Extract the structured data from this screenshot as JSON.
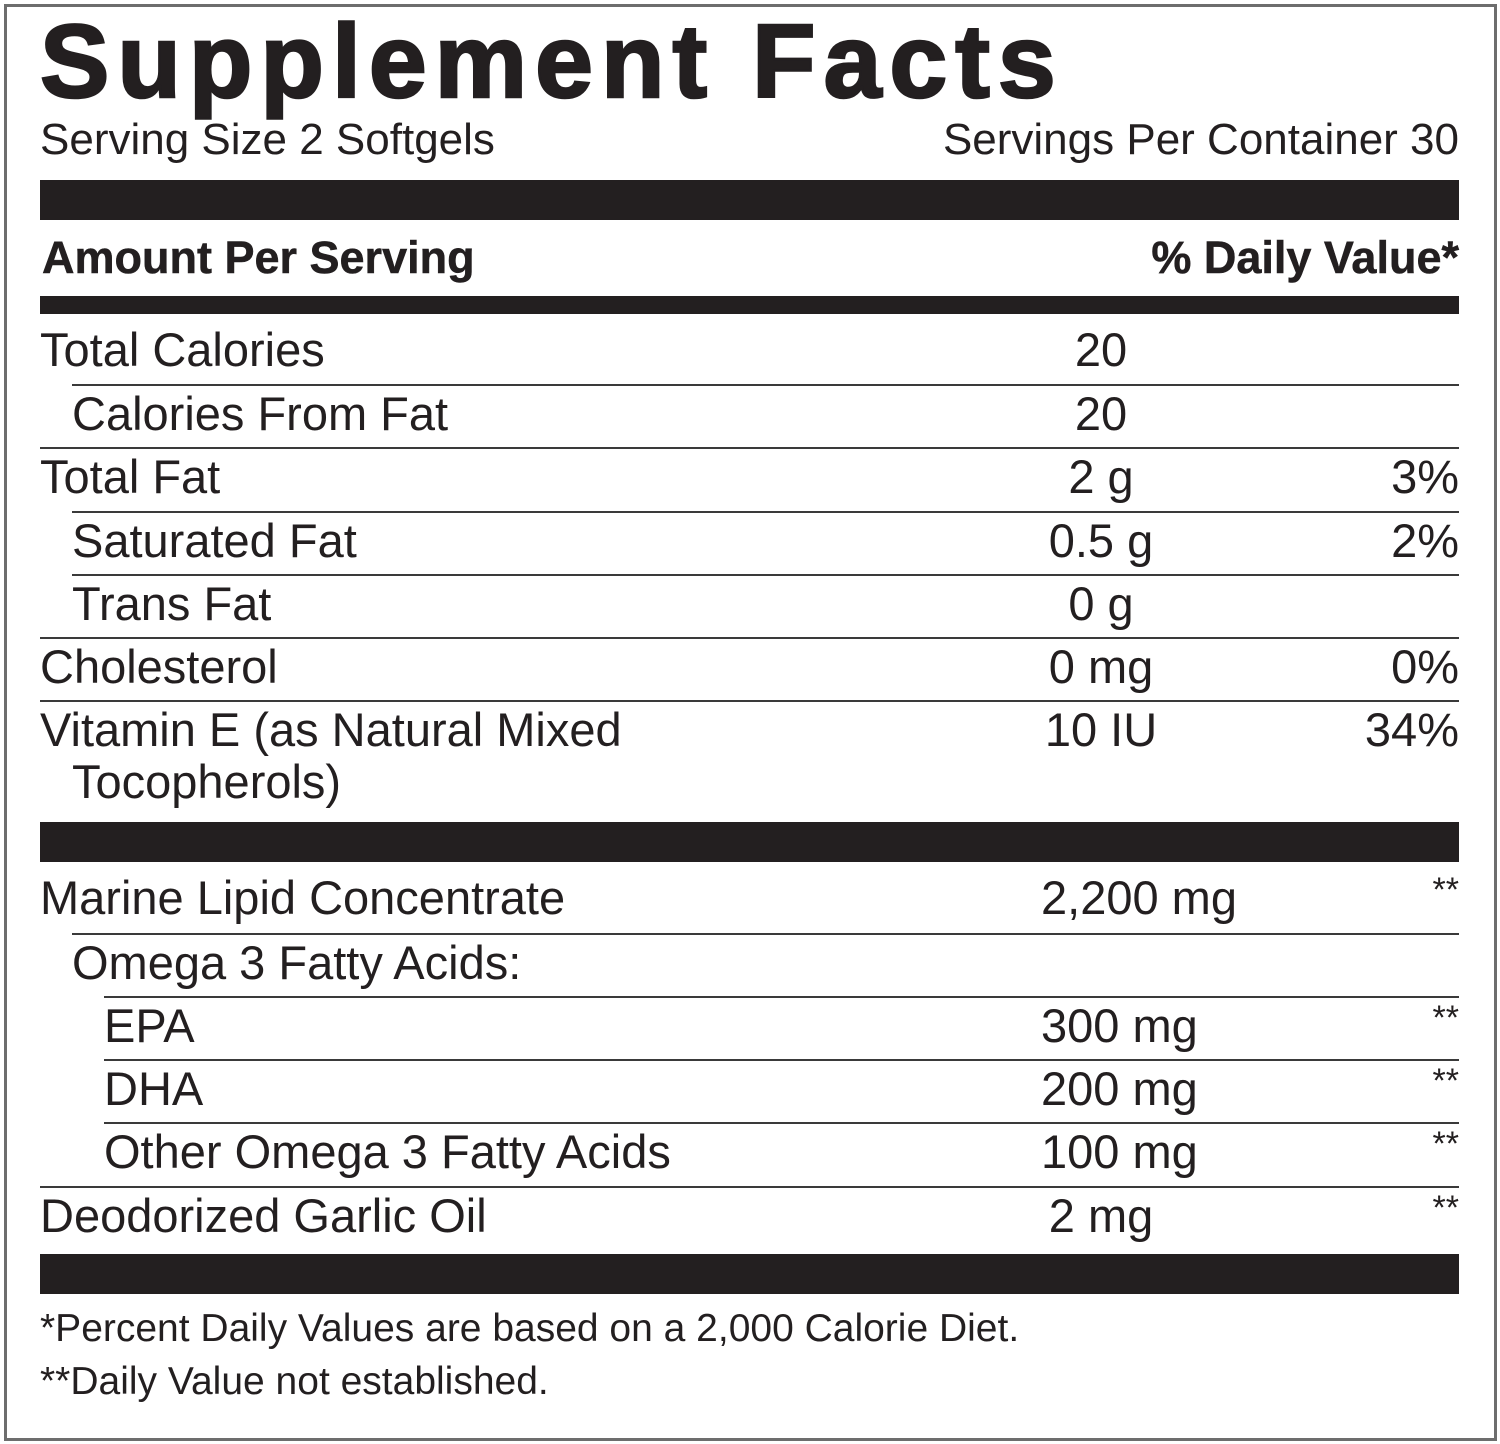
{
  "title": "Supplement Facts",
  "serving_size": "Serving Size 2 Softgels",
  "servings_per_container": "Servings Per Container 30",
  "header": {
    "amount": "Amount Per Serving",
    "daily_value": "% Daily Value*"
  },
  "section1": [
    {
      "name": "Total Calories",
      "amount": "20",
      "dv": "",
      "indent": 0
    },
    {
      "name": "Calories From Fat",
      "amount": "20",
      "dv": "",
      "indent": 1
    },
    {
      "name": "Total Fat",
      "amount": "2 g",
      "dv": "3%",
      "indent": 0
    },
    {
      "name": "Saturated Fat",
      "amount": "0.5 g",
      "dv": "2%",
      "indent": 1
    },
    {
      "name": "Trans Fat",
      "amount": "0 g",
      "dv": "",
      "indent": 1
    },
    {
      "name": "Cholesterol",
      "amount": "0 mg",
      "dv": "0%",
      "indent": 0
    },
    {
      "name": "Vitamin E (as Natural Mixed",
      "name_cont": "Tocopherols)",
      "amount": "10 IU",
      "dv": "34%",
      "indent": 0
    }
  ],
  "section2": [
    {
      "name": "Marine Lipid Concentrate",
      "amount": "2,200 mg",
      "dv": "**",
      "indent": 0
    },
    {
      "name": "Omega 3 Fatty Acids:",
      "amount": "",
      "dv": "",
      "indent": 1
    },
    {
      "name": "EPA",
      "amount": "300 mg",
      "dv": "**",
      "indent": 2
    },
    {
      "name": "DHA",
      "amount": "200 mg",
      "dv": "**",
      "indent": 2
    },
    {
      "name": "Other Omega 3 Fatty Acids",
      "amount": "100 mg",
      "dv": "**",
      "indent": 2
    },
    {
      "name": "Deodorized Garlic Oil",
      "amount": "2 mg",
      "dv": "**",
      "indent": 0
    }
  ],
  "footnotes": [
    "*Percent Daily Values are based on a 2,000 Calorie Diet.",
    "**Daily Value not established."
  ]
}
